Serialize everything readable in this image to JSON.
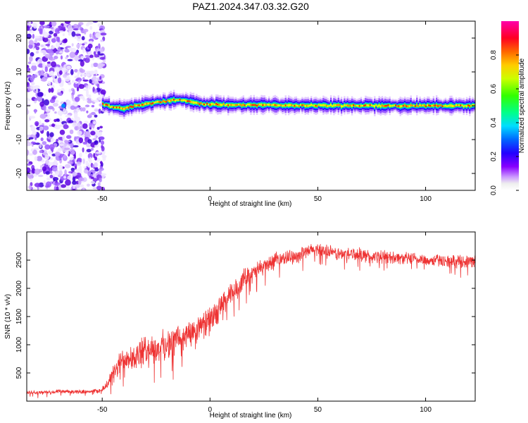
{
  "figure": {
    "title": "PAZ1.2024.347.03.32.G20"
  },
  "chart_data": [
    {
      "type": "heatmap",
      "xlabel": "Height of straight line (km)",
      "ylabel": "Frequency (Hz)",
      "xlim": [
        -85,
        123
      ],
      "ylim": [
        -25,
        25
      ],
      "x_ticks": [
        -50,
        0,
        50,
        100
      ],
      "y_ticks": [
        -20,
        -10,
        0,
        10,
        20
      ],
      "noise_region_x": [
        -85,
        -49
      ],
      "signal_ridge": {
        "x": [
          -50,
          -45,
          -40,
          -35,
          -30,
          -25,
          -20,
          -15,
          -10,
          -5,
          0,
          10,
          20,
          30,
          40,
          50,
          60,
          70,
          80,
          90,
          100,
          110,
          123
        ],
        "freq": [
          0.5,
          -0.5,
          -0.8,
          0.0,
          0.5,
          1.0,
          1.4,
          1.8,
          1.2,
          0.6,
          0.4,
          0.3,
          0.2,
          0.1,
          0.1,
          0.1,
          0.0,
          0.1,
          0.0,
          0.0,
          0.0,
          0.0,
          0.0
        ]
      },
      "colorbar": {
        "label": "Normalized spectral amplitude",
        "range": [
          0,
          1
        ],
        "ticks": [
          "0.0",
          "0.2",
          "0.4",
          "0.6",
          "0.8"
        ],
        "tick_values": [
          0.0,
          0.2,
          0.4,
          0.6,
          0.8
        ],
        "colors": [
          "#ffffff",
          "#9966ff",
          "#3300cc",
          "#0000ff",
          "#00ccff",
          "#00ff66",
          "#66ff00",
          "#ffff00",
          "#ff8800",
          "#ff0000",
          "#ff00aa"
        ]
      }
    },
    {
      "type": "line",
      "xlabel": "Height of straight line (km)",
      "ylabel": "SNR (10 * v/v)",
      "xlim": [
        -85,
        123
      ],
      "ylim": [
        0,
        3000
      ],
      "x_ticks": [
        -50,
        0,
        50,
        100
      ],
      "y_ticks": [
        500,
        1000,
        1500,
        2000,
        2500
      ],
      "color": "#ee3333",
      "series": [
        {
          "x": [
            -85,
            -80,
            -75,
            -70,
            -65,
            -60,
            -55,
            -50,
            -47,
            -45,
            -42,
            -40,
            -37,
            -35,
            -32,
            -30,
            -27,
            -25,
            -22,
            -20,
            -17,
            -15,
            -12,
            -10,
            -7,
            -5,
            -2,
            0,
            3,
            5,
            8,
            10,
            13,
            15,
            18,
            20,
            23,
            25,
            28,
            30,
            35,
            40,
            45,
            50,
            55,
            60,
            65,
            70,
            75,
            80,
            85,
            90,
            95,
            100,
            105,
            110,
            115,
            120,
            123
          ],
          "y": [
            150,
            150,
            160,
            170,
            165,
            170,
            175,
            190,
            350,
            450,
            650,
            780,
            820,
            750,
            850,
            900,
            950,
            880,
            1000,
            980,
            1050,
            1150,
            1080,
            1250,
            1150,
            1300,
            1400,
            1450,
            1550,
            1700,
            1800,
            1900,
            2000,
            2150,
            2250,
            2250,
            2350,
            2400,
            2450,
            2500,
            2550,
            2580,
            2650,
            2700,
            2650,
            2600,
            2620,
            2600,
            2550,
            2560,
            2550,
            2530,
            2520,
            2500,
            2500,
            2480,
            2480,
            2480,
            2500
          ],
          "amplitude": [
            40,
            40,
            40,
            40,
            40,
            40,
            40,
            60,
            150,
            200,
            250,
            280,
            300,
            300,
            320,
            300,
            300,
            300,
            300,
            300,
            300,
            300,
            300,
            300,
            300,
            300,
            280,
            260,
            260,
            250,
            250,
            240,
            230,
            220,
            200,
            200,
            180,
            170,
            160,
            150,
            150,
            150,
            140,
            140,
            140,
            140,
            140,
            140,
            140,
            140,
            130,
            130,
            130,
            130,
            130,
            130,
            130,
            130,
            130
          ]
        }
      ]
    }
  ]
}
